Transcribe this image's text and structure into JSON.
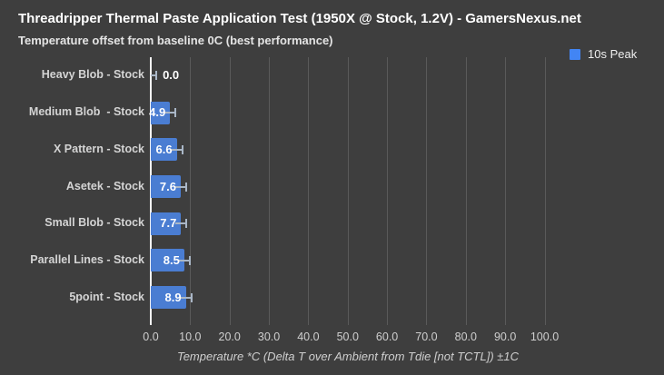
{
  "title": "Threadripper Thermal Paste Application Test (1950X @ Stock, 1.2V) - GamersNexus.net",
  "subtitle": "Temperature offset from baseline 0C (best performance)",
  "legend": {
    "label": "10s Peak"
  },
  "colors": {
    "background": "#3e3e3e",
    "bar": "#4a7dd2",
    "legend_swatch": "#4285f4",
    "gridline": "#5a5a5a",
    "axis_line": "#f2f2f2",
    "error_bar": "#a9b6c6",
    "value_text": "#ffffff",
    "category_text": "#d4d4d4"
  },
  "chart_data": {
    "type": "bar",
    "orientation": "horizontal",
    "title": "Threadripper Thermal Paste Application Test (1950X @ Stock, 1.2V) - GamersNexus.net",
    "subtitle": "Temperature offset from baseline 0C (best performance)",
    "categories": [
      "Heavy Blob - Stock",
      "Medium Blob  - Stock",
      "X Pattern - Stock",
      "Asetek - Stock",
      "Small Blob - Stock",
      "Parallel Lines - Stock",
      "5point - Stock"
    ],
    "series": [
      {
        "name": "10s Peak",
        "values": [
          0.0,
          4.9,
          6.6,
          7.6,
          7.7,
          8.5,
          8.9
        ]
      }
    ],
    "value_labels": [
      "0.0",
      "4.9",
      "6.6",
      "7.6",
      "7.7",
      "8.5",
      "8.9"
    ],
    "error_margin_c": 1.0,
    "xlabel": "Temperature *C (Delta T over Ambient from Tdie [not TCTL]) ±1C",
    "xlim": [
      0,
      100
    ],
    "x_ticks": [
      0,
      10,
      20,
      30,
      40,
      50,
      60,
      70,
      80,
      90,
      100
    ],
    "x_tick_labels": [
      "0.0",
      "10.0",
      "20.0",
      "30.0",
      "40.0",
      "50.0",
      "60.0",
      "70.0",
      "80.0",
      "90.0",
      "100.0"
    ],
    "grid": true,
    "legend_position": "top-right"
  }
}
